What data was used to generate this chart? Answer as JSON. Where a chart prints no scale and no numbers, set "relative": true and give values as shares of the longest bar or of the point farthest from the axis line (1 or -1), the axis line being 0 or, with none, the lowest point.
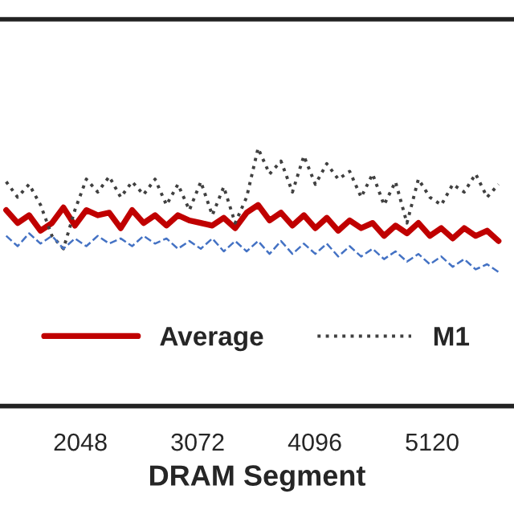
{
  "chart_data": {
    "type": "line",
    "xlabel": "DRAM Segment",
    "relative": true,
    "xlim": [
      1346,
      5835
    ],
    "xticks": [
      2048,
      3072,
      4096,
      5120
    ],
    "legend": "bottom",
    "grid": false,
    "x": [
      1400,
      1500,
      1600,
      1700,
      1800,
      1900,
      2000,
      2100,
      2200,
      2300,
      2400,
      2500,
      2600,
      2700,
      2800,
      2900,
      3000,
      3100,
      3200,
      3300,
      3400,
      3500,
      3600,
      3700,
      3800,
      3900,
      4000,
      4100,
      4200,
      4300,
      4400,
      4500,
      4600,
      4700,
      4800,
      4900,
      5000,
      5100,
      5200,
      5300,
      5400,
      5500,
      5600,
      5700
    ],
    "series": [
      {
        "name": "Average",
        "color": "#c00000",
        "line_style": "solid",
        "values": [
          0.76,
          0.71,
          0.74,
          0.68,
          0.71,
          0.77,
          0.7,
          0.76,
          0.74,
          0.75,
          0.69,
          0.76,
          0.71,
          0.74,
          0.7,
          0.74,
          0.72,
          0.71,
          0.7,
          0.73,
          0.69,
          0.75,
          0.78,
          0.72,
          0.75,
          0.7,
          0.74,
          0.69,
          0.73,
          0.68,
          0.72,
          0.69,
          0.71,
          0.66,
          0.7,
          0.67,
          0.71,
          0.66,
          0.69,
          0.65,
          0.69,
          0.66,
          0.68,
          0.64
        ]
      },
      {
        "name": "M1",
        "color": "#404040",
        "line_style": "dotted",
        "values": [
          0.87,
          0.81,
          0.86,
          0.78,
          0.66,
          0.61,
          0.76,
          0.88,
          0.83,
          0.89,
          0.81,
          0.87,
          0.82,
          0.88,
          0.78,
          0.86,
          0.76,
          0.87,
          0.74,
          0.85,
          0.71,
          0.81,
          1,
          0.9,
          0.95,
          0.83,
          0.97,
          0.86,
          0.94,
          0.88,
          0.91,
          0.81,
          0.9,
          0.78,
          0.87,
          0.71,
          0.88,
          0.81,
          0.78,
          0.86,
          0.83,
          0.9,
          0.81,
          0.86
        ]
      },
      {
        "color": "#4472c4",
        "line_style": "dashed",
        "values": [
          0.66,
          0.62,
          0.67,
          0.63,
          0.66,
          0.61,
          0.65,
          0.62,
          0.66,
          0.63,
          0.65,
          0.62,
          0.66,
          0.63,
          0.65,
          0.61,
          0.64,
          0.61,
          0.65,
          0.6,
          0.64,
          0.6,
          0.64,
          0.59,
          0.64,
          0.59,
          0.63,
          0.59,
          0.63,
          0.58,
          0.62,
          0.58,
          0.61,
          0.57,
          0.6,
          0.56,
          0.59,
          0.55,
          0.58,
          0.54,
          0.57,
          0.53,
          0.55,
          0.52
        ]
      }
    ]
  }
}
